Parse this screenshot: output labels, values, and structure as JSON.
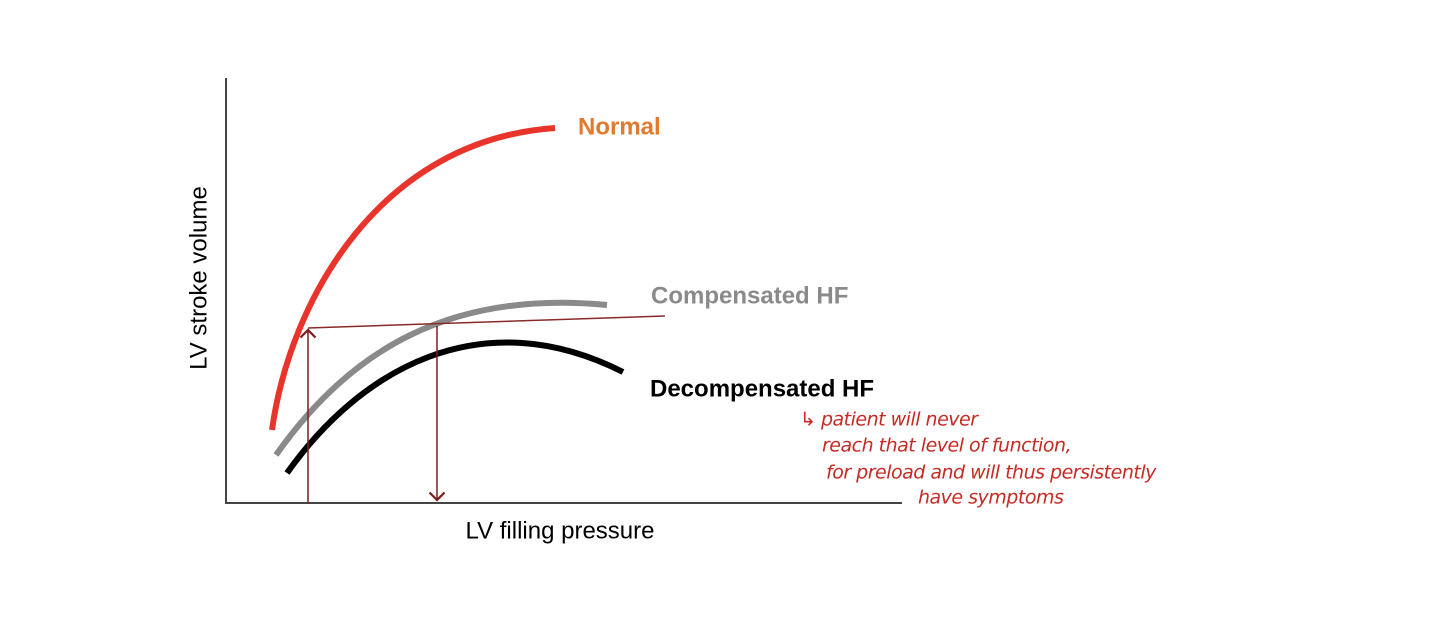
{
  "axes": {
    "y_label": "LV stroke volume",
    "x_label": "LV filling pressure"
  },
  "curves": [
    {
      "label": "Normal"
    },
    {
      "label": "Compensated HF"
    },
    {
      "label": "Decompensated HF"
    }
  ],
  "annotation": {
    "lines": [
      "↳ patient will never",
      "reach that level of function,",
      "for preload and will thus persistently",
      "have symptoms"
    ]
  }
}
